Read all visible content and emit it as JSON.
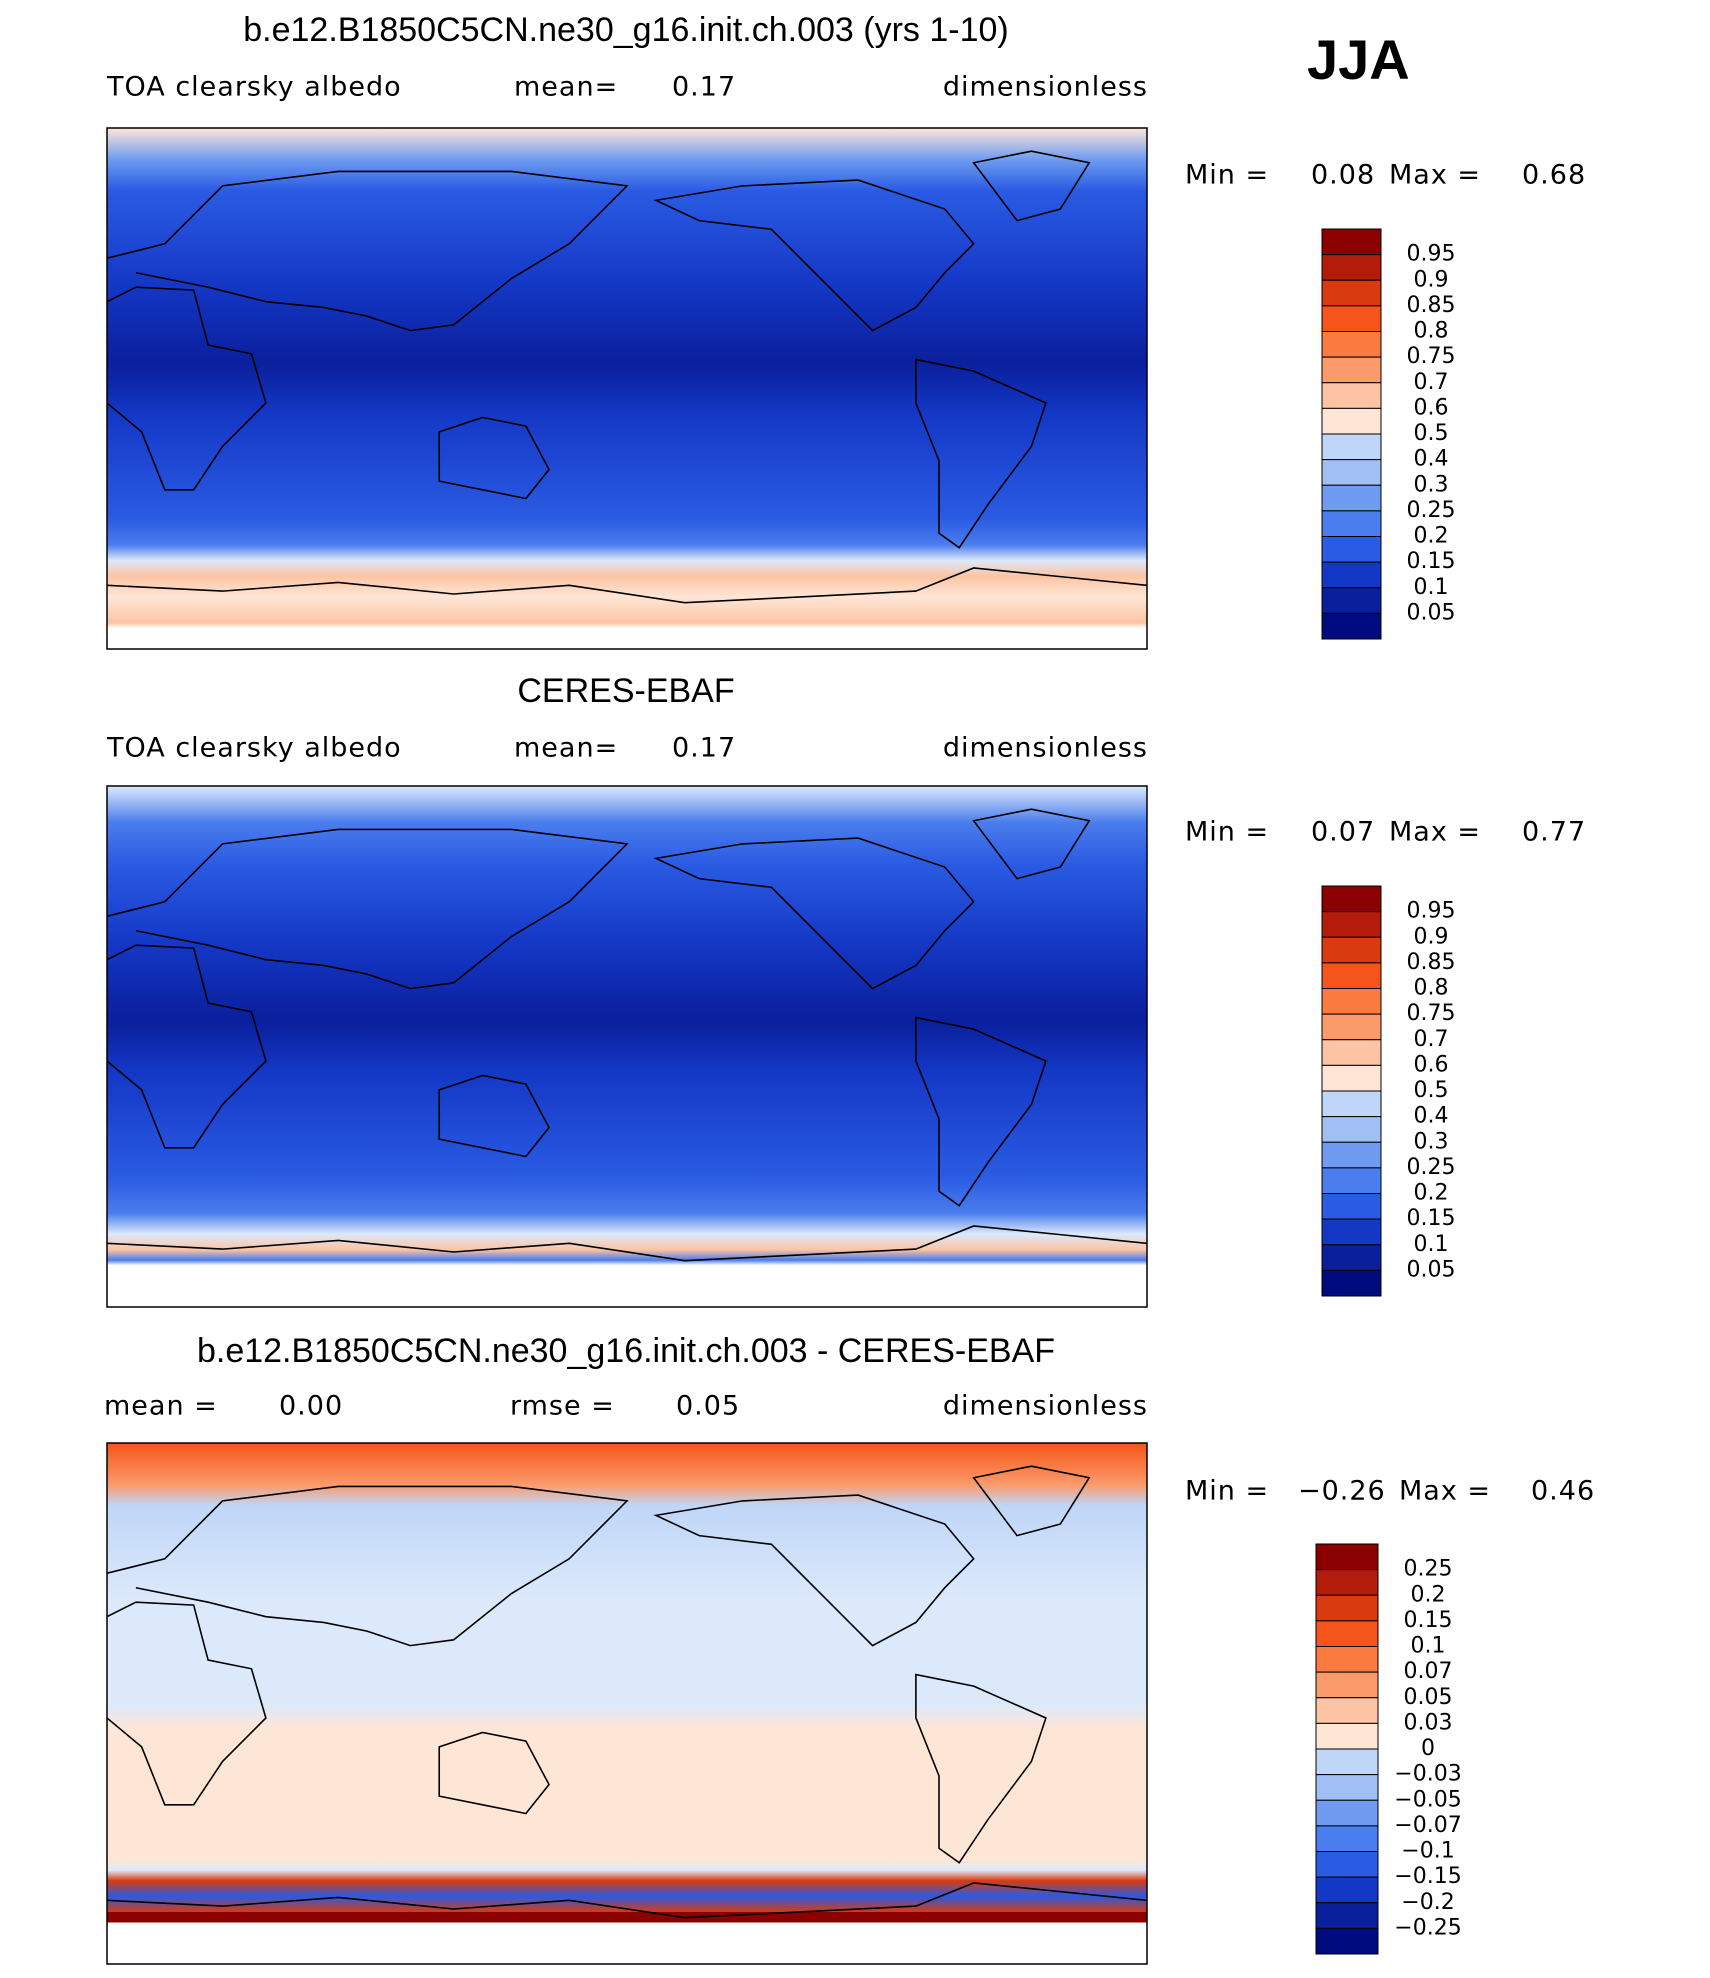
{
  "title": "b.e12.B1850C5CN.ne30_g16.init.ch.003 (yrs 1-10)",
  "season": "JJA",
  "panels": [
    {
      "stats": [
        "TOA clearsky albedo",
        "mean=",
        "0.17",
        "dimensionless"
      ],
      "range": [
        "Min =",
        "0.08",
        "Max =",
        "0.68"
      ],
      "colorbar": {
        "levels": [
          "0.95",
          "0.9",
          "0.85",
          "0.8",
          "0.75",
          "0.7",
          "0.6",
          "0.5",
          "0.4",
          "0.3",
          "0.25",
          "0.2",
          "0.15",
          "0.1",
          "0.05"
        ]
      }
    },
    {
      "title": "CERES-EBAF",
      "stats": [
        "TOA clearsky albedo",
        "mean=",
        "0.17",
        "dimensionless"
      ],
      "range": [
        "Min =",
        "0.07",
        "Max =",
        "0.77"
      ],
      "colorbar": {
        "levels": [
          "0.95",
          "0.9",
          "0.85",
          "0.8",
          "0.75",
          "0.7",
          "0.6",
          "0.5",
          "0.4",
          "0.3",
          "0.25",
          "0.2",
          "0.15",
          "0.1",
          "0.05"
        ]
      }
    },
    {
      "title": "b.e12.B1850C5CN.ne30_g16.init.ch.003 - CERES-EBAF",
      "stats": [
        "mean =",
        "0.00",
        "rmse =",
        "0.05",
        "dimensionless"
      ],
      "range": [
        "Min =",
        "−0.26",
        "Max =",
        "0.46"
      ],
      "colorbar": {
        "levels": [
          "0.25",
          "0.2",
          "0.15",
          "0.1",
          "0.07",
          "0.05",
          "0.03",
          "0",
          "−0.03",
          "−0.05",
          "−0.07",
          "−0.1",
          "−0.15",
          "−0.2",
          "−0.25"
        ]
      }
    }
  ],
  "colors": [
    "#8b0000",
    "#b31b0a",
    "#d93a0f",
    "#f5541a",
    "#fa7a40",
    "#fb9a6b",
    "#fcc4a4",
    "#fee6d6",
    "#dce9fb",
    "#bfd6f8",
    "#a0bff5",
    "#6f9cf0",
    "#4a7ded",
    "#2a5be3",
    "#1438c6",
    "#0a1f9c",
    "#000b80"
  ]
}
